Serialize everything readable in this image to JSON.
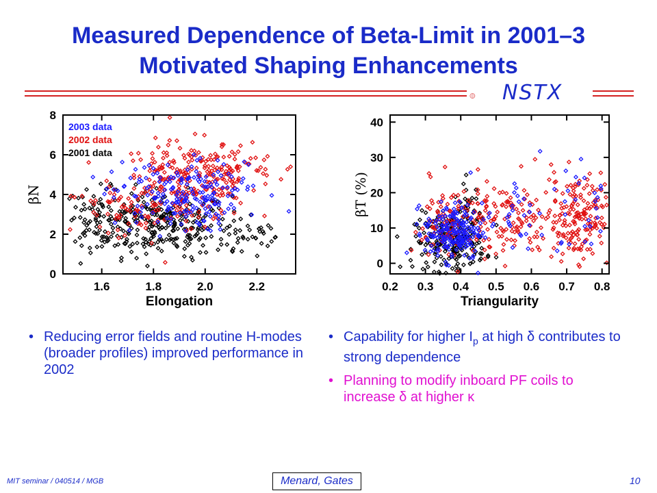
{
  "slide": {
    "title_line1": "Measured Dependence of Beta-Limit in 2001–3",
    "title_line2": "Motivated Shaping Enhancements",
    "logo_text": "NSTX",
    "footer_left": "MIT seminar / 040514 / MGB",
    "footer_center": "Menard, Gates",
    "page_number": "10",
    "colors": {
      "title": "#1a2bc8",
      "rule": "#d42020",
      "magenta": "#e010d0",
      "series_2003": "#1a1aff",
      "series_2002": "#e01010",
      "series_2001": "#000000"
    }
  },
  "bullets_left": [
    {
      "text": "Reducing error fields and routine H-modes (broader profiles) improved performance in 2002",
      "color": "#1a2bc8"
    }
  ],
  "bullets_right": [
    {
      "pre": "Capability for higher I",
      "sub": "p",
      "post": " at high δ contributes to strong dependence",
      "color": "#1a2bc8"
    },
    {
      "pre": "Planning to modify inboard PF coils to increase δ at higher κ",
      "sub": "",
      "post": "",
      "color": "#e010d0"
    }
  ],
  "chart_data": [
    {
      "type": "scatter",
      "xlabel": "Elongation",
      "ylabel": "βN",
      "xlim": [
        1.45,
        2.35
      ],
      "ylim": [
        0,
        8
      ],
      "xticks": [
        "1.6",
        "1.8",
        "2.0",
        "2.2"
      ],
      "yticks": [
        "0",
        "2",
        "4",
        "6",
        "8"
      ],
      "legend_position": "top-left",
      "series": [
        {
          "name": "2003 data",
          "color": "#1a1aff",
          "clusters": [
            {
              "cx": 1.88,
              "cy": 3.9,
              "sx": 0.12,
              "sy": 0.9,
              "n": 160
            },
            {
              "cx": 2.05,
              "cy": 4.0,
              "sx": 0.12,
              "sy": 0.9,
              "n": 40
            }
          ]
        },
        {
          "name": "2002 data",
          "color": "#e01010",
          "clusters": [
            {
              "cx": 1.92,
              "cy": 4.6,
              "sx": 0.13,
              "sy": 1.0,
              "n": 220
            },
            {
              "cx": 1.7,
              "cy": 3.0,
              "sx": 0.13,
              "sy": 0.8,
              "n": 60
            },
            {
              "cx": 2.08,
              "cy": 5.2,
              "sx": 0.1,
              "sy": 0.7,
              "n": 70
            }
          ]
        },
        {
          "name": "2001 data",
          "color": "#000000",
          "clusters": [
            {
              "cx": 1.82,
              "cy": 2.5,
              "sx": 0.14,
              "sy": 0.8,
              "n": 260
            },
            {
              "cx": 1.58,
              "cy": 2.9,
              "sx": 0.06,
              "sy": 0.7,
              "n": 60
            },
            {
              "cx": 2.15,
              "cy": 1.8,
              "sx": 0.1,
              "sy": 0.6,
              "n": 40
            }
          ]
        }
      ]
    },
    {
      "type": "scatter",
      "xlabel": "Triangularity",
      "ylabel": "βT (%)",
      "xlim": [
        0.2,
        0.82
      ],
      "ylim": [
        -3,
        42
      ],
      "xticks": [
        "0.2",
        "0.3",
        "0.4",
        "0.5",
        "0.6",
        "0.7",
        "0.8"
      ],
      "yticks": [
        "0",
        "10",
        "20",
        "30",
        "40"
      ],
      "series": [
        {
          "name": "2003 data",
          "color": "#1a1aff",
          "clusters": [
            {
              "cx": 0.38,
              "cy": 9,
              "sx": 0.04,
              "sy": 4,
              "n": 200
            },
            {
              "cx": 0.58,
              "cy": 12,
              "sx": 0.08,
              "sy": 7,
              "n": 40
            },
            {
              "cx": 0.76,
              "cy": 17,
              "sx": 0.04,
              "sy": 7,
              "n": 25
            }
          ]
        },
        {
          "name": "2002 data",
          "color": "#e01010",
          "clusters": [
            {
              "cx": 0.38,
              "cy": 11,
              "sx": 0.06,
              "sy": 6,
              "n": 120
            },
            {
              "cx": 0.55,
              "cy": 12,
              "sx": 0.07,
              "sy": 6,
              "n": 100
            },
            {
              "cx": 0.73,
              "cy": 13,
              "sx": 0.05,
              "sy": 6,
              "n": 180
            }
          ]
        },
        {
          "name": "2001 data",
          "color": "#000000",
          "clusters": [
            {
              "cx": 0.37,
              "cy": 6,
              "sx": 0.05,
              "sy": 4,
              "n": 200
            },
            {
              "cx": 0.42,
              "cy": 13,
              "sx": 0.02,
              "sy": 5,
              "n": 40
            }
          ]
        }
      ]
    }
  ]
}
